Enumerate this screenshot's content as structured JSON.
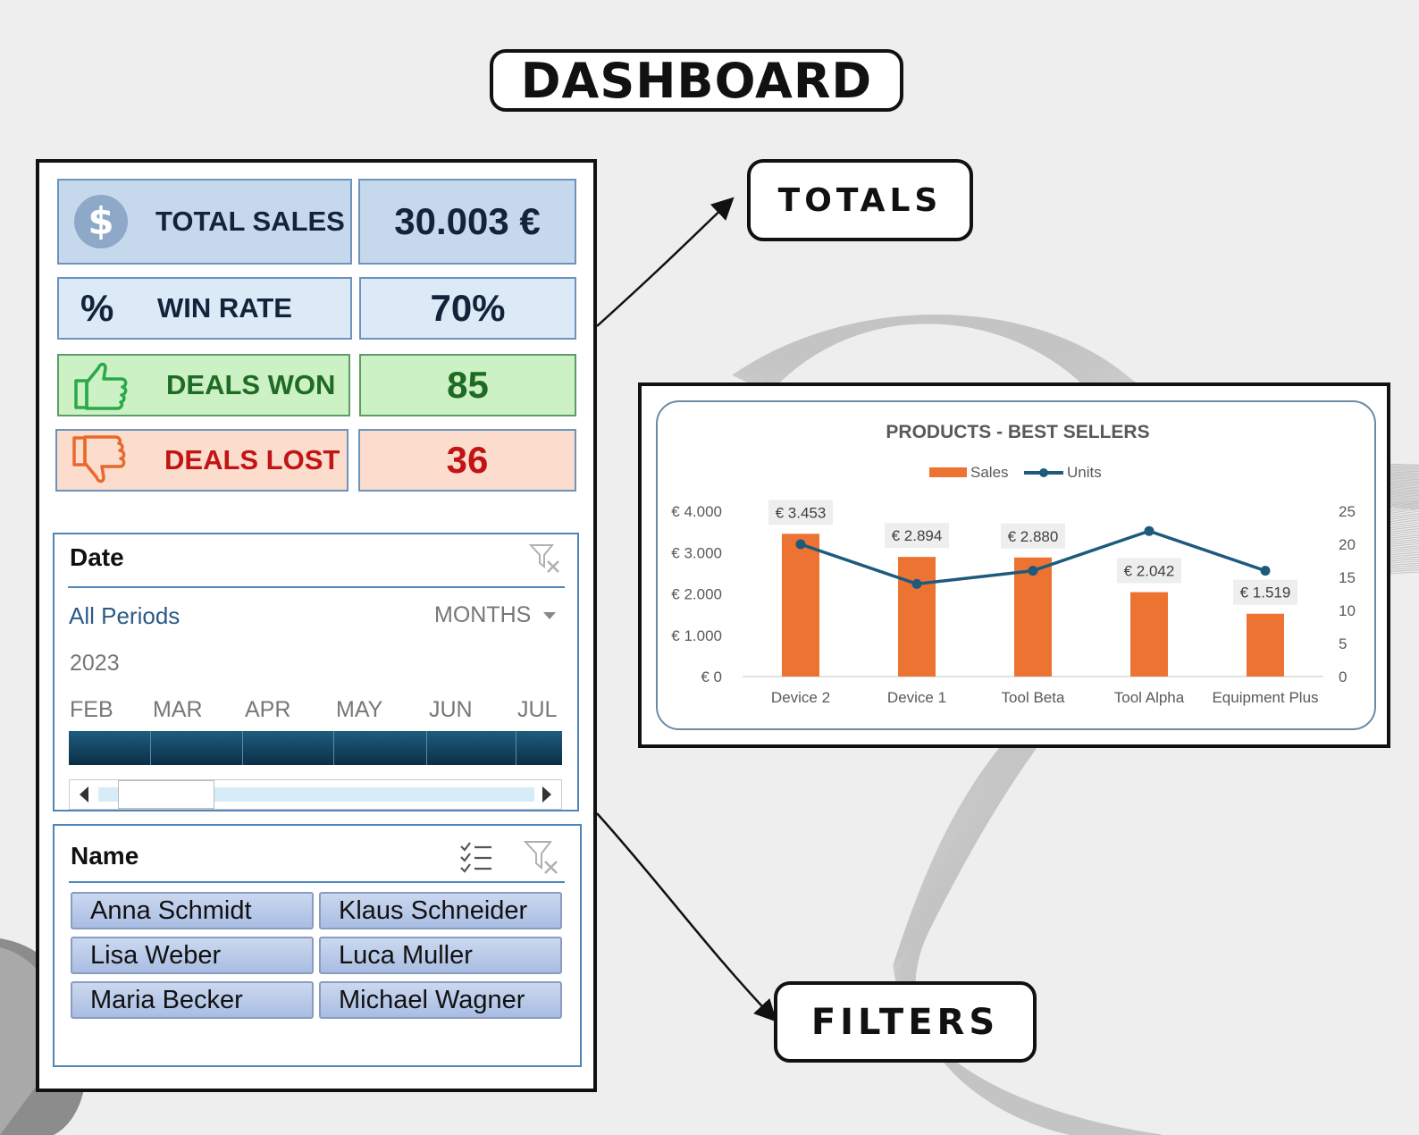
{
  "title": "DASHBOARD",
  "callouts": {
    "totals": "TOTALS",
    "filters": "FILTERS"
  },
  "kpis": {
    "total_sales": {
      "label": "TOTAL SALES",
      "value": "30.003 €"
    },
    "win_rate": {
      "label": "WIN RATE",
      "value": "70%",
      "symbol": "%"
    },
    "deals_won": {
      "label": "DEALS WON",
      "value": "85"
    },
    "deals_lost": {
      "label": "DEALS LOST",
      "value": "36"
    }
  },
  "date_slicer": {
    "title": "Date",
    "period": "All Periods",
    "granularity": "MONTHS",
    "year": "2023",
    "months": [
      "FEB",
      "MAR",
      "APR",
      "MAY",
      "JUN",
      "JUL"
    ]
  },
  "name_slicer": {
    "title": "Name",
    "names": [
      "Anna Schmidt",
      "Klaus Schneider",
      "Lisa Weber",
      "Luca Muller",
      "Maria Becker",
      "Michael Wagner"
    ]
  },
  "chart_data": {
    "type": "bar",
    "title": "PRODUCTS - BEST SELLERS",
    "categories": [
      "Device 2",
      "Device 1",
      "Tool Beta",
      "Tool Alpha",
      "Equipment Plus"
    ],
    "series": [
      {
        "name": "Sales",
        "type": "bar",
        "axis": "left",
        "values": [
          3453,
          2894,
          2880,
          2042,
          1519
        ],
        "labels": [
          "€ 3.453",
          "€ 2.894",
          "€ 2.880",
          "€ 2.042",
          "€ 1.519"
        ],
        "color": "#ed7332"
      },
      {
        "name": "Units",
        "type": "line",
        "axis": "right",
        "values": [
          20,
          14,
          16,
          22,
          16
        ],
        "color": "#1d5a7c"
      }
    ],
    "y_left": {
      "min": 0,
      "max": 4000,
      "ticks": [
        "€ 0",
        "€ 1.000",
        "€ 2.000",
        "€ 3.000",
        "€ 4.000"
      ]
    },
    "y_right": {
      "min": 0,
      "max": 25,
      "ticks": [
        "0",
        "5",
        "10",
        "15",
        "20",
        "25"
      ]
    },
    "legend": "top",
    "grid": false
  }
}
